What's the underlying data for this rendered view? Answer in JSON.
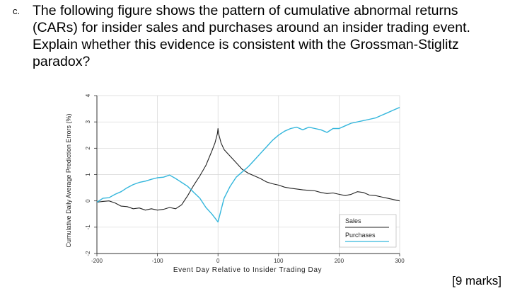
{
  "question": {
    "label": "c.",
    "lines": [
      "The following figure shows the pattern of cumulative abnormal returns",
      "(CARs) for insider sales and purchases around an insider trading event.",
      "Explain whether this evidence is consistent with the Grossman-Stiglitz",
      "paradox?"
    ]
  },
  "marks": "[9 marks]",
  "chart_data": {
    "type": "line",
    "title": "",
    "xlabel": "Event Day Relative to Insider Trading Day",
    "ylabel": "Cumulative Daily Average Prediction Errors (%)",
    "xlim": [
      -200,
      300
    ],
    "ylim": [
      -2,
      4
    ],
    "xticks": [
      -200,
      -100,
      0,
      100,
      200,
      300
    ],
    "xtick_labels": [
      "-200",
      "-100",
      "0",
      "100",
      "200",
      "300"
    ],
    "yticks": [
      4,
      3,
      2,
      1,
      0,
      -1,
      -2
    ],
    "ytick_labels": [
      "4",
      "3",
      "2",
      "1",
      "0",
      "-1",
      "-2"
    ],
    "legend": [
      "Sales",
      "Purchases"
    ],
    "legend_position": "bottom-right",
    "series": [
      {
        "name": "Sales",
        "color": "#222222",
        "x": [
          -200,
          -190,
          -180,
          -170,
          -160,
          -150,
          -140,
          -130,
          -120,
          -110,
          -100,
          -90,
          -80,
          -70,
          -60,
          -50,
          -40,
          -30,
          -20,
          -10,
          -5,
          -1,
          0,
          1,
          5,
          10,
          20,
          30,
          40,
          50,
          60,
          70,
          80,
          90,
          100,
          110,
          120,
          130,
          140,
          150,
          160,
          170,
          180,
          190,
          200,
          210,
          220,
          230,
          240,
          250,
          260,
          270,
          280,
          290,
          300
        ],
        "y": [
          -0.05,
          -0.02,
          0.0,
          -0.08,
          -0.2,
          -0.22,
          -0.3,
          -0.27,
          -0.35,
          -0.3,
          -0.35,
          -0.32,
          -0.25,
          -0.3,
          -0.15,
          0.2,
          0.6,
          0.95,
          1.35,
          1.9,
          2.2,
          2.55,
          2.75,
          2.55,
          2.2,
          1.95,
          1.7,
          1.45,
          1.2,
          1.05,
          0.95,
          0.85,
          0.72,
          0.65,
          0.6,
          0.52,
          0.48,
          0.45,
          0.42,
          0.4,
          0.38,
          0.32,
          0.28,
          0.3,
          0.25,
          0.2,
          0.25,
          0.35,
          0.32,
          0.22,
          0.2,
          0.15,
          0.1,
          0.05,
          0.0
        ]
      },
      {
        "name": "Purchases",
        "color": "#33b6dc",
        "x": [
          -200,
          -190,
          -180,
          -170,
          -160,
          -150,
          -140,
          -130,
          -120,
          -110,
          -100,
          -90,
          -80,
          -70,
          -60,
          -50,
          -40,
          -30,
          -20,
          -10,
          -5,
          0,
          5,
          10,
          20,
          30,
          40,
          50,
          60,
          70,
          80,
          90,
          100,
          110,
          120,
          130,
          140,
          150,
          160,
          170,
          180,
          190,
          200,
          210,
          220,
          230,
          240,
          250,
          260,
          270,
          280,
          290,
          300
        ],
        "y": [
          -0.05,
          0.1,
          0.12,
          0.25,
          0.35,
          0.5,
          0.62,
          0.7,
          0.75,
          0.82,
          0.88,
          0.9,
          0.98,
          0.85,
          0.7,
          0.55,
          0.32,
          0.1,
          -0.25,
          -0.5,
          -0.65,
          -0.8,
          -0.35,
          0.1,
          0.55,
          0.9,
          1.1,
          1.3,
          1.55,
          1.8,
          2.05,
          2.3,
          2.5,
          2.65,
          2.75,
          2.8,
          2.7,
          2.8,
          2.75,
          2.7,
          2.6,
          2.75,
          2.75,
          2.85,
          2.95,
          3.0,
          3.05,
          3.1,
          3.15,
          3.25,
          3.35,
          3.45,
          3.55
        ]
      }
    ]
  }
}
